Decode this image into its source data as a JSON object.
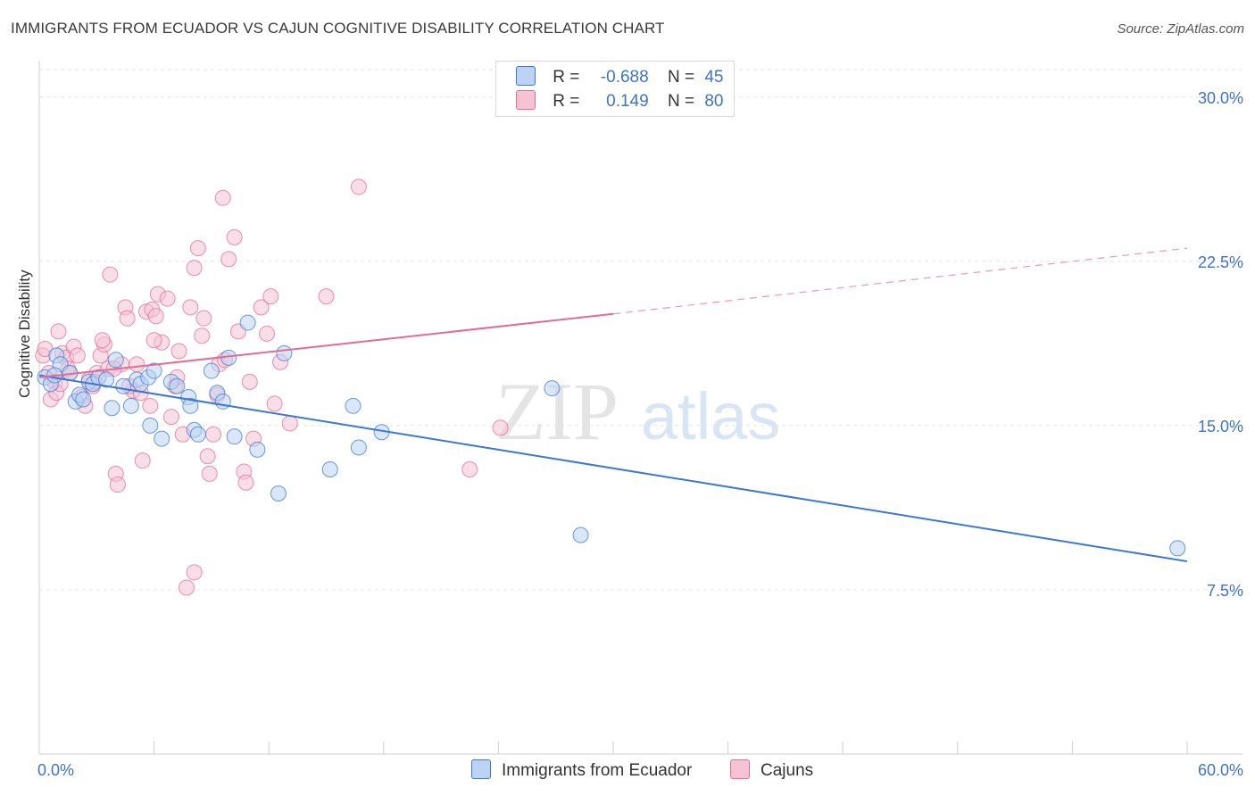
{
  "header": {
    "title": "IMMIGRANTS FROM ECUADOR VS CAJUN COGNITIVE DISABILITY CORRELATION CHART",
    "source": "Source: ZipAtlas.com"
  },
  "legend": {
    "rows": [
      {
        "r_label": "R =",
        "r_value": "-0.688",
        "n_label": "N =",
        "n_value": "45"
      },
      {
        "r_label": "R =",
        "r_value": "0.149",
        "n_label": "N =",
        "n_value": "80"
      }
    ]
  },
  "colors": {
    "blue": "#3a78d4",
    "blue_fill": "#bcd3f3",
    "pink": "#e46b96",
    "pink_fill": "#f6c3d3",
    "tick_label": "#3d73c9",
    "grid": "#e3e3e3"
  },
  "watermark": {
    "zip": "ZIP",
    "atlas": "atlas"
  },
  "chart_data": {
    "type": "scatter",
    "title": "IMMIGRANTS FROM ECUADOR VS CAJUN COGNITIVE DISABILITY CORRELATION CHART",
    "xlabel": "",
    "ylabel": "Cognitive Disability",
    "xlim": [
      0,
      60
    ],
    "ylim": [
      0,
      31.5
    ],
    "x_tick_labels": [
      "0.0%",
      "60.0%"
    ],
    "y_ticks": [
      7.5,
      15.0,
      22.5,
      30.0
    ],
    "y_tick_labels": [
      "7.5%",
      "15.0%",
      "22.5%",
      "30.0%"
    ],
    "grid": true,
    "legend_position": "bottom",
    "series": [
      {
        "name": "Immigrants from Ecuador",
        "color": "#3a78d4",
        "r": -0.688,
        "n": 45,
        "trend": {
          "x0": 0,
          "y0": 17.3,
          "x1": 60,
          "y1": 8.8,
          "dashed_from": null
        },
        "points": [
          [
            0.3,
            17.2
          ],
          [
            0.6,
            16.9
          ],
          [
            0.9,
            18.2
          ],
          [
            1.1,
            17.8
          ],
          [
            1.6,
            17.4
          ],
          [
            1.9,
            16.1
          ],
          [
            2.1,
            16.4
          ],
          [
            2.6,
            17.0
          ],
          [
            2.8,
            16.9
          ],
          [
            3.1,
            17.2
          ],
          [
            3.8,
            15.8
          ],
          [
            4.0,
            18.0
          ],
          [
            4.4,
            16.8
          ],
          [
            4.8,
            15.9
          ],
          [
            5.1,
            17.1
          ],
          [
            5.3,
            16.9
          ],
          [
            5.7,
            17.2
          ],
          [
            5.8,
            15.0
          ],
          [
            6.0,
            17.5
          ],
          [
            6.4,
            14.4
          ],
          [
            6.9,
            17.0
          ],
          [
            7.2,
            16.8
          ],
          [
            7.8,
            16.3
          ],
          [
            7.9,
            15.9
          ],
          [
            8.1,
            14.8
          ],
          [
            8.3,
            14.6
          ],
          [
            9.0,
            17.5
          ],
          [
            9.3,
            16.5
          ],
          [
            9.6,
            16.1
          ],
          [
            9.9,
            18.1
          ],
          [
            10.2,
            14.5
          ],
          [
            10.9,
            19.7
          ],
          [
            11.4,
            13.9
          ],
          [
            12.5,
            11.9
          ],
          [
            12.8,
            18.3
          ],
          [
            15.2,
            13.0
          ],
          [
            16.4,
            15.9
          ],
          [
            16.7,
            14.0
          ],
          [
            17.9,
            14.7
          ],
          [
            26.8,
            16.7
          ],
          [
            28.3,
            10.0
          ],
          [
            59.5,
            9.4
          ],
          [
            0.8,
            17.3
          ],
          [
            2.3,
            16.2
          ],
          [
            3.5,
            17.1
          ]
        ]
      },
      {
        "name": "Cajuns",
        "color": "#e46b96",
        "r": 0.149,
        "n": 80,
        "trend": {
          "x0": 0,
          "y0": 17.2,
          "x1": 30,
          "y1": 20.1,
          "x2": 60,
          "y2": 23.1,
          "dashed_from": 30
        },
        "points": [
          [
            0.2,
            18.2
          ],
          [
            0.3,
            18.5
          ],
          [
            0.5,
            17.4
          ],
          [
            0.6,
            16.2
          ],
          [
            0.8,
            17.0
          ],
          [
            1.0,
            19.3
          ],
          [
            1.2,
            18.3
          ],
          [
            1.4,
            18.1
          ],
          [
            1.6,
            17.4
          ],
          [
            1.8,
            18.6
          ],
          [
            2.0,
            18.2
          ],
          [
            2.2,
            16.3
          ],
          [
            2.4,
            15.9
          ],
          [
            2.6,
            17.1
          ],
          [
            2.8,
            16.8
          ],
          [
            3.0,
            17.4
          ],
          [
            3.2,
            18.2
          ],
          [
            3.4,
            18.7
          ],
          [
            3.6,
            17.6
          ],
          [
            3.7,
            21.9
          ],
          [
            4.0,
            12.8
          ],
          [
            4.1,
            12.3
          ],
          [
            4.3,
            17.8
          ],
          [
            4.5,
            20.4
          ],
          [
            4.6,
            19.9
          ],
          [
            4.9,
            16.6
          ],
          [
            5.1,
            17.8
          ],
          [
            5.3,
            16.5
          ],
          [
            5.4,
            13.4
          ],
          [
            5.6,
            20.2
          ],
          [
            5.8,
            15.9
          ],
          [
            5.9,
            20.3
          ],
          [
            6.1,
            20.0
          ],
          [
            6.2,
            21.0
          ],
          [
            6.4,
            18.8
          ],
          [
            6.7,
            20.8
          ],
          [
            6.9,
            15.4
          ],
          [
            7.1,
            16.8
          ],
          [
            7.3,
            18.4
          ],
          [
            7.5,
            14.6
          ],
          [
            7.7,
            7.6
          ],
          [
            7.9,
            20.4
          ],
          [
            8.1,
            22.2
          ],
          [
            8.3,
            23.1
          ],
          [
            8.5,
            19.1
          ],
          [
            8.6,
            19.9
          ],
          [
            8.8,
            13.6
          ],
          [
            8.9,
            12.8
          ],
          [
            9.1,
            14.6
          ],
          [
            9.4,
            17.8
          ],
          [
            9.6,
            25.4
          ],
          [
            9.7,
            18.0
          ],
          [
            9.9,
            22.6
          ],
          [
            10.2,
            23.6
          ],
          [
            10.4,
            19.3
          ],
          [
            10.7,
            12.9
          ],
          [
            10.8,
            12.4
          ],
          [
            11.2,
            14.4
          ],
          [
            11.6,
            20.4
          ],
          [
            11.9,
            19.2
          ],
          [
            12.1,
            20.9
          ],
          [
            12.3,
            16.0
          ],
          [
            12.6,
            17.9
          ],
          [
            13.1,
            15.1
          ],
          [
            15.0,
            20.9
          ],
          [
            16.7,
            25.9
          ],
          [
            22.5,
            13.0
          ],
          [
            24.1,
            14.9
          ],
          [
            8.1,
            8.3
          ],
          [
            3.3,
            18.9
          ],
          [
            1.5,
            17.6
          ],
          [
            2.9,
            17.0
          ],
          [
            0.9,
            16.5
          ],
          [
            4.7,
            16.8
          ],
          [
            6.0,
            18.9
          ],
          [
            7.2,
            17.2
          ],
          [
            9.3,
            16.4
          ],
          [
            11.0,
            17.0
          ],
          [
            1.1,
            16.9
          ],
          [
            3.9,
            17.6
          ]
        ]
      }
    ]
  },
  "bottom_legend": {
    "items": [
      "Immigrants from Ecuador",
      "Cajuns"
    ]
  }
}
